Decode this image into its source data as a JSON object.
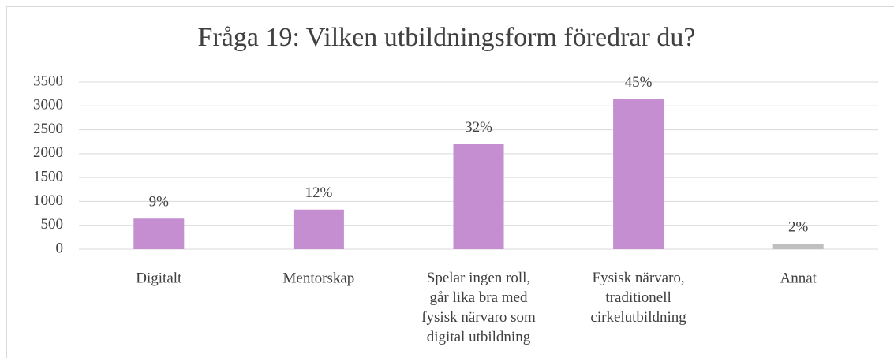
{
  "chart_data": {
    "type": "bar",
    "title": "Fråga 19: Vilken utbildningsform föredrar du?",
    "categories": [
      "Digitalt",
      "Mentorskap",
      "Spelar ingen roll,\ngår lika bra med\nfysisk närvaro som\ndigital utbildning",
      "Fysisk närvaro,\ntraditionell\ncirkelutbildning",
      "Annat"
    ],
    "values": [
      640,
      830,
      2200,
      3140,
      110
    ],
    "value_labels": [
      "9%",
      "12%",
      "32%",
      "45%",
      "2%"
    ],
    "colors": [
      "#c58ed0",
      "#c58ed0",
      "#c58ed0",
      "#c58ed0",
      "#bfbfbf"
    ],
    "ylim": [
      0,
      3500
    ],
    "yticks": [
      0,
      500,
      1000,
      1500,
      2000,
      2500,
      3000,
      3500
    ],
    "grid": true
  }
}
